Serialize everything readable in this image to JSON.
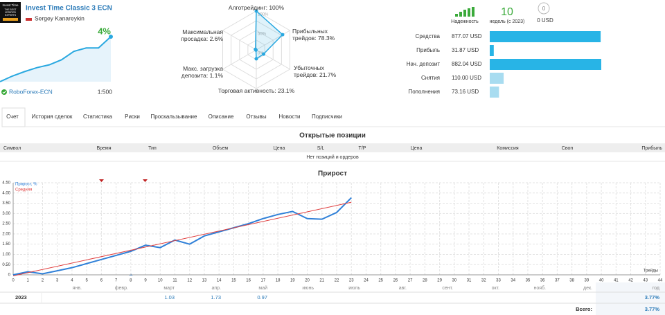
{
  "header": {
    "logo_text": [
      "Invest Time",
      "THE BEST",
      "VERIFIED",
      "EXPERTS"
    ],
    "title": "Invest Time Classic 3 ECN",
    "author": "Sergey Kanareykin",
    "growth": "4%",
    "growth_curve": [
      0,
      0.5,
      0.9,
      1.25,
      1.5,
      1.95,
      2.7,
      3.0,
      3.0,
      4.0
    ],
    "server": "RoboForex-ECN",
    "leverage": "1:500"
  },
  "radar": {
    "axes": [
      {
        "name": "Алготрейдинг:",
        "value": 100,
        "value_label": "100%"
      },
      {
        "name": "Прибыльных трейдов:",
        "value": 78.3,
        "value_label": "78.3%"
      },
      {
        "name": "Убыточных трейдов:",
        "value": 21.7,
        "value_label": "21.7%"
      },
      {
        "name": "Торговая активность:",
        "value": 23.1,
        "value_label": "23.1%"
      },
      {
        "name": "Макс. загрузка депозита:",
        "value": 1.1,
        "value_label": "1.1%"
      },
      {
        "name": "Максимальная просадка:",
        "value": 2.6,
        "value_label": "2.6%"
      }
    ],
    "rings": [
      {
        "value": 100,
        "label": "100%"
      },
      {
        "value": 50,
        "label": "50%"
      },
      {
        "value": 0,
        "label": "0%"
      }
    ]
  },
  "reliability": {
    "label": "Надежность",
    "weeks": 10,
    "weeks_label": "недель (с 2023)",
    "subscribers": 0,
    "subscribers_funds": "0 USD"
  },
  "account": {
    "items": [
      {
        "name": "Средства",
        "value": 877.07,
        "value_label": "877.07 USD"
      },
      {
        "name": "Прибыль",
        "value": 31.87,
        "value_label": "31.87 USD"
      },
      {
        "name": "Нач. депозит",
        "value": 882.04,
        "value_label": "882.04 USD"
      },
      {
        "name": "Снятия",
        "value": 110.0,
        "value_label": "110.00 USD"
      },
      {
        "name": "Пополнения",
        "value": 73.16,
        "value_label": "73.16 USD"
      }
    ]
  },
  "tabs": [
    "Счет",
    "История сделок",
    "Статистика",
    "Риски",
    "Проскальзывание",
    "Описание",
    "Отзывы",
    "Новости",
    "Подписчики"
  ],
  "positions": {
    "title": "Открытые позиции",
    "columns": [
      "Символ",
      "Время",
      "Тип",
      "Объем",
      "Цена",
      "S/L",
      "T/P",
      "Цена",
      "Комиссия",
      "Своп",
      "Прибыль"
    ],
    "empty": "Нет позиций и ордеров"
  },
  "chart_data": {
    "type": "line",
    "title": "Прирост",
    "x_label": "Трейды",
    "xlim": [
      0,
      44
    ],
    "xticks": [
      0,
      1,
      2,
      3,
      4,
      5,
      6,
      7,
      8,
      9,
      10,
      11,
      12,
      13,
      14,
      15,
      16,
      17,
      18,
      19,
      20,
      21,
      22,
      23,
      24,
      25,
      26,
      27,
      28,
      29,
      30,
      31,
      32,
      33,
      34,
      35,
      36,
      37,
      38,
      39,
      40,
      41,
      42,
      43,
      44
    ],
    "ylim": [
      0,
      4.5
    ],
    "yticks": [
      0,
      {
        "value": 0.5,
        "label": "0.50"
      },
      {
        "value": 1,
        "label": "1.00"
      },
      {
        "value": 1.5,
        "label": "1.50"
      },
      {
        "value": 2,
        "label": "2.00"
      },
      {
        "value": 2.5,
        "label": "2.50"
      },
      {
        "value": 3,
        "label": "3.00"
      },
      {
        "value": 3.5,
        "label": "3.50"
      },
      {
        "value": 4,
        "label": "4.00"
      },
      {
        "value": 4.5,
        "label": "4.50"
      }
    ],
    "grid": true,
    "series": [
      {
        "name": "Прирост, %",
        "color": "#2f80d8",
        "x": [
          0,
          1,
          2,
          3,
          4,
          5,
          6,
          7,
          8,
          9,
          10,
          11,
          12,
          13,
          14,
          15,
          16,
          17,
          18,
          19,
          20,
          21,
          22,
          23
        ],
        "values": [
          0,
          0.15,
          0.05,
          0.2,
          0.35,
          0.55,
          0.75,
          0.95,
          1.15,
          1.45,
          1.33,
          1.7,
          1.5,
          1.9,
          2.1,
          2.3,
          2.5,
          2.75,
          2.95,
          3.1,
          2.75,
          2.72,
          3.05,
          3.77
        ]
      },
      {
        "name": "Средняя",
        "color": "#e04040",
        "x": [
          0,
          23
        ],
        "values": [
          -0.05,
          3.55
        ]
      }
    ]
  },
  "returns_table": {
    "columns": [
      "янв.",
      "февр.",
      "март",
      "апр.",
      "май",
      "июнь",
      "июль",
      "авг.",
      "сент.",
      "окт.",
      "нояб.",
      "дек.",
      "год"
    ],
    "rows": [
      {
        "year": "2023",
        "cells": [
          null,
          null,
          1.03,
          1.73,
          0.97,
          null,
          null,
          null,
          null,
          null,
          null,
          null
        ],
        "total": "3.77%"
      }
    ],
    "footer": {
      "label": "Всего:",
      "total": "3.77%"
    }
  }
}
